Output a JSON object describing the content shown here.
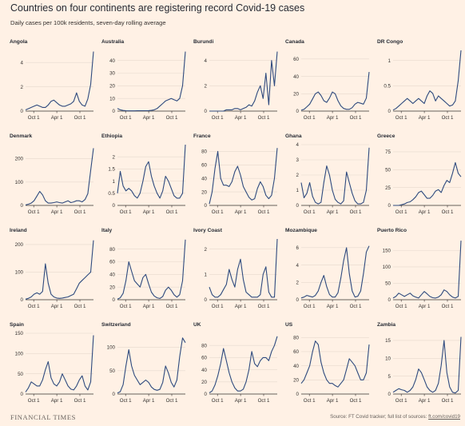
{
  "header": {
    "title": "Countries on four continents are registering record Covid-19 cases",
    "subtitle": "Daily cases per 100k residents, seven-day rolling average"
  },
  "footer": {
    "brand": "FINANCIAL TIMES",
    "source_prefix": "Source: FT Covid tracker; full list of sources: ",
    "source_link": "ft.com/covid19"
  },
  "colors": {
    "background": "#FFF1E5",
    "line": "#2E4A7E",
    "gridline": "#E6D9CE",
    "axis": "#33302E",
    "text": "#33302E"
  },
  "chart_data": [
    {
      "type": "line",
      "country": "Angola",
      "xticks": [
        "Oct 1",
        "Apr 1",
        "Oct 1"
      ],
      "yticks": [
        0,
        2,
        4
      ],
      "ylim": [
        0,
        5
      ],
      "values": [
        0.1,
        0.2,
        0.3,
        0.4,
        0.5,
        0.4,
        0.3,
        0.3,
        0.5,
        0.8,
        0.9,
        0.7,
        0.5,
        0.4,
        0.4,
        0.5,
        0.6,
        0.8,
        1.5,
        0.8,
        0.5,
        0.4,
        1.0,
        2.2,
        4.9
      ]
    },
    {
      "type": "line",
      "country": "Australia",
      "xticks": [
        "Oct 1",
        "Apr 1",
        "Oct 1"
      ],
      "yticks": [
        0,
        10,
        20,
        30,
        40
      ],
      "ylim": [
        0,
        48
      ],
      "values": [
        2,
        1,
        0.5,
        0.3,
        0.2,
        0.2,
        0.2,
        0.3,
        0.3,
        0.3,
        0.3,
        0.4,
        0.6,
        1,
        2,
        4,
        6,
        8,
        9,
        10,
        9,
        8,
        10,
        20,
        47
      ]
    },
    {
      "type": "line",
      "country": "Burundi",
      "xticks": [
        "Oct 1",
        "Apr 1",
        "Oct 1"
      ],
      "yticks": [
        0,
        2,
        4
      ],
      "ylim": [
        0,
        4.8
      ],
      "values": [
        0,
        0,
        0,
        0,
        0,
        0,
        0.1,
        0.1,
        0.1,
        0.2,
        0.2,
        0.1,
        0.2,
        0.3,
        0.5,
        0.4,
        0.8,
        1.5,
        2,
        1,
        3,
        0.5,
        4,
        2,
        4.7
      ]
    },
    {
      "type": "line",
      "country": "Canada",
      "xticks": [
        "Oct 1",
        "Apr 1",
        "Oct 1"
      ],
      "yticks": [
        0,
        20,
        40,
        60
      ],
      "ylim": [
        0,
        70
      ],
      "values": [
        1,
        2,
        5,
        8,
        14,
        20,
        22,
        18,
        12,
        10,
        15,
        22,
        20,
        12,
        6,
        3,
        2,
        2,
        4,
        8,
        10,
        9,
        8,
        15,
        45
      ]
    },
    {
      "type": "line",
      "country": "DR Congo",
      "xticks": [
        "Oct 1",
        "Apr 1",
        "Oct 1"
      ],
      "yticks": [
        0,
        0.5,
        1
      ],
      "ylim": [
        0,
        1.2
      ],
      "values": [
        0.02,
        0.05,
        0.1,
        0.15,
        0.2,
        0.25,
        0.2,
        0.15,
        0.2,
        0.25,
        0.2,
        0.15,
        0.3,
        0.4,
        0.35,
        0.2,
        0.3,
        0.25,
        0.2,
        0.15,
        0.1,
        0.12,
        0.2,
        0.6,
        1.2
      ]
    },
    {
      "type": "line",
      "country": "Denmark",
      "xticks": [
        "Oct 1",
        "Apr 1",
        "Oct 1"
      ],
      "yticks": [
        0,
        100,
        200
      ],
      "ylim": [
        0,
        260
      ],
      "values": [
        2,
        5,
        10,
        20,
        40,
        60,
        45,
        20,
        10,
        10,
        12,
        15,
        12,
        10,
        15,
        20,
        12,
        15,
        20,
        20,
        15,
        25,
        50,
        150,
        245
      ]
    },
    {
      "type": "line",
      "country": "Ethiopia",
      "xticks": [
        "Oct 1",
        "Apr 1",
        "Oct 1"
      ],
      "yticks": [
        0,
        0.5,
        1,
        1.5,
        2
      ],
      "ylim": [
        0,
        2.5
      ],
      "values": [
        0.5,
        1.4,
        0.8,
        0.6,
        0.7,
        0.6,
        0.4,
        0.3,
        0.5,
        1.0,
        1.6,
        1.8,
        1.2,
        0.8,
        0.5,
        0.3,
        0.6,
        1.2,
        1.0,
        0.7,
        0.4,
        0.3,
        0.3,
        0.5,
        2.5
      ]
    },
    {
      "type": "line",
      "country": "France",
      "xticks": [
        "Oct 1",
        "Apr 1",
        "Oct 1"
      ],
      "yticks": [
        0,
        20,
        40,
        60,
        80
      ],
      "ylim": [
        0,
        90
      ],
      "values": [
        2,
        20,
        55,
        80,
        40,
        30,
        30,
        28,
        35,
        50,
        58,
        45,
        28,
        20,
        12,
        8,
        10,
        25,
        35,
        28,
        15,
        10,
        15,
        40,
        85
      ]
    },
    {
      "type": "line",
      "country": "Ghana",
      "xticks": [
        "Oct 1",
        "Apr 1",
        "Oct 1"
      ],
      "yticks": [
        0,
        1,
        2,
        3,
        4
      ],
      "ylim": [
        0,
        4
      ],
      "values": [
        1.5,
        0.5,
        0.8,
        1.5,
        0.6,
        0.2,
        0.1,
        0.2,
        1.5,
        2.6,
        2.0,
        1.0,
        0.4,
        0.2,
        0.1,
        0.3,
        2.2,
        1.5,
        0.8,
        0.3,
        0.1,
        0.1,
        0.2,
        1.0,
        3.8
      ]
    },
    {
      "type": "line",
      "country": "Greece",
      "xticks": [
        "Oct 1",
        "Apr 1",
        "Oct 1"
      ],
      "yticks": [
        0,
        25,
        50,
        75
      ],
      "ylim": [
        0,
        85
      ],
      "values": [
        0,
        0,
        0,
        1,
        2,
        4,
        5,
        8,
        12,
        18,
        20,
        15,
        10,
        10,
        14,
        20,
        22,
        18,
        28,
        35,
        32,
        45,
        60,
        45,
        40
      ]
    },
    {
      "type": "line",
      "country": "Ireland",
      "xticks": [
        "Oct 1",
        "Apr 1",
        "Oct 1"
      ],
      "yticks": [
        0,
        100,
        200
      ],
      "ylim": [
        0,
        220
      ],
      "values": [
        2,
        5,
        10,
        20,
        25,
        20,
        30,
        130,
        60,
        20,
        10,
        6,
        5,
        6,
        8,
        10,
        15,
        20,
        40,
        60,
        70,
        80,
        90,
        100,
        215
      ]
    },
    {
      "type": "line",
      "country": "Italy",
      "xticks": [
        "Oct 1",
        "Apr 1",
        "Oct 1"
      ],
      "yticks": [
        0,
        20,
        40,
        60,
        80
      ],
      "ylim": [
        0,
        96
      ],
      "values": [
        1,
        3,
        10,
        30,
        60,
        45,
        30,
        25,
        20,
        35,
        40,
        25,
        12,
        6,
        3,
        2,
        5,
        15,
        20,
        15,
        8,
        4,
        8,
        30,
        95
      ]
    },
    {
      "type": "line",
      "country": "Ivory Coast",
      "xticks": [
        "Oct 1",
        "Apr 1",
        "Oct 1"
      ],
      "yticks": [
        0,
        1,
        2
      ],
      "ylim": [
        0,
        2.4
      ],
      "values": [
        0.5,
        0.2,
        0.1,
        0.1,
        0.2,
        0.4,
        0.6,
        1.2,
        0.8,
        0.5,
        1.2,
        1.6,
        0.8,
        0.3,
        0.2,
        0.1,
        0.1,
        0.1,
        0.2,
        1.0,
        1.3,
        0.3,
        0.1,
        0.1,
        2.4
      ]
    },
    {
      "type": "line",
      "country": "Mozambique",
      "xticks": [
        "Oct 1",
        "Apr 1",
        "Oct 1"
      ],
      "yticks": [
        0,
        2,
        4,
        6
      ],
      "ylim": [
        0,
        7
      ],
      "values": [
        0.2,
        0.3,
        0.5,
        0.4,
        0.3,
        0.5,
        1.0,
        2.0,
        2.8,
        1.5,
        0.6,
        0.3,
        0.3,
        0.8,
        2.5,
        4.5,
        6.0,
        3.0,
        1.0,
        0.3,
        0.4,
        1.0,
        3.0,
        5.5,
        6.2
      ]
    },
    {
      "type": "line",
      "country": "Puerto Rico",
      "xticks": [
        "Oct 1",
        "Apr 1",
        "Oct 1"
      ],
      "yticks": [
        0,
        50,
        100,
        150
      ],
      "ylim": [
        0,
        185
      ],
      "values": [
        5,
        10,
        20,
        15,
        10,
        15,
        20,
        12,
        8,
        5,
        15,
        25,
        18,
        10,
        6,
        5,
        8,
        15,
        30,
        25,
        15,
        8,
        5,
        10,
        180
      ]
    },
    {
      "type": "line",
      "country": "Spain",
      "xticks": [
        "Oct 1",
        "Apr 1",
        "Oct 1"
      ],
      "yticks": [
        0,
        50,
        100,
        150
      ],
      "ylim": [
        0,
        150
      ],
      "values": [
        5,
        15,
        30,
        25,
        20,
        20,
        35,
        60,
        80,
        40,
        25,
        20,
        30,
        50,
        35,
        20,
        12,
        10,
        20,
        35,
        45,
        20,
        10,
        30,
        145
      ]
    },
    {
      "type": "line",
      "country": "Switzerland",
      "xticks": [
        "Oct 1",
        "Apr 1",
        "Oct 1"
      ],
      "yticks": [
        0,
        50,
        100
      ],
      "ylim": [
        0,
        130
      ],
      "values": [
        2,
        5,
        20,
        60,
        95,
        60,
        40,
        30,
        20,
        25,
        30,
        25,
        15,
        10,
        8,
        10,
        25,
        60,
        45,
        25,
        15,
        30,
        80,
        120,
        110
      ]
    },
    {
      "type": "line",
      "country": "UK",
      "xticks": [
        "Oct 1",
        "Apr 1",
        "Oct 1"
      ],
      "yticks": [
        0,
        20,
        40,
        60,
        80
      ],
      "ylim": [
        0,
        100
      ],
      "values": [
        2,
        5,
        15,
        30,
        50,
        75,
        55,
        35,
        20,
        10,
        5,
        5,
        8,
        20,
        40,
        70,
        50,
        45,
        55,
        60,
        60,
        55,
        70,
        80,
        95
      ]
    },
    {
      "type": "line",
      "country": "US",
      "xticks": [
        "Oct 1",
        "Apr 1",
        "Oct 1"
      ],
      "yticks": [
        0,
        20,
        40,
        60,
        80
      ],
      "ylim": [
        0,
        86
      ],
      "values": [
        15,
        20,
        30,
        40,
        60,
        75,
        70,
        45,
        30,
        20,
        15,
        15,
        12,
        10,
        15,
        20,
        35,
        50,
        45,
        40,
        30,
        20,
        20,
        30,
        70
      ]
    },
    {
      "type": "line",
      "country": "Zambia",
      "xticks": [
        "Oct 1",
        "Apr 1",
        "Oct 1"
      ],
      "yticks": [
        0,
        5,
        10,
        15
      ],
      "ylim": [
        0,
        17
      ],
      "values": [
        0.5,
        1,
        1.5,
        1.2,
        1,
        0.5,
        1,
        2,
        4,
        7,
        6,
        4,
        2,
        1,
        0.5,
        1,
        3,
        8,
        15,
        6,
        2,
        0.5,
        0.3,
        1,
        16
      ]
    }
  ]
}
